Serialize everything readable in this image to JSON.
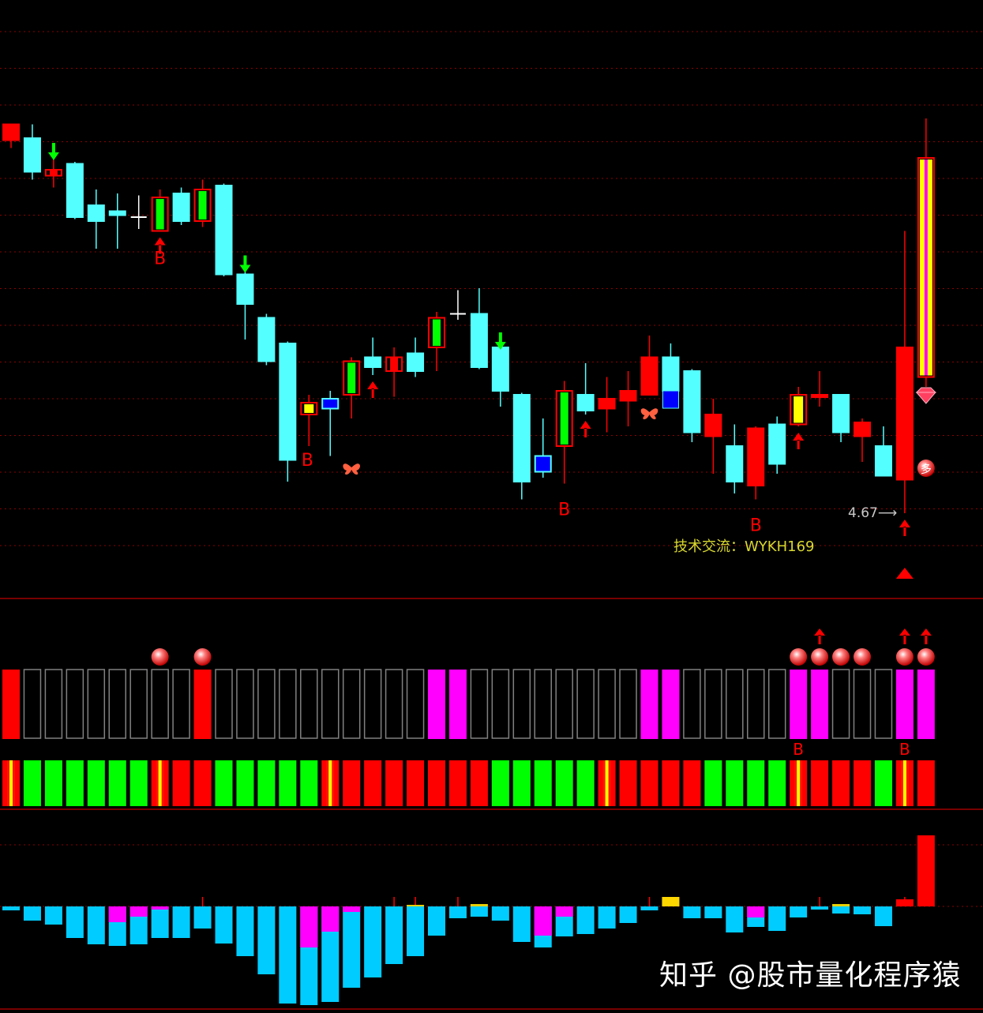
{
  "colors": {
    "background": "#000000",
    "up": "#ff0000",
    "down": "#54ffff",
    "green": "#00ff00",
    "yellow": "#ffff00",
    "blue": "#0000ff",
    "magenta": "#ff00ff",
    "hollow": "#808080",
    "histogram": "#00ccff",
    "grid": "#8b0000"
  },
  "annotations": {
    "contact": "技术交流：WYKH169",
    "low_price": "4.67",
    "watermark": "知乎 @股市量化程序猿",
    "b_label": "B",
    "duo_label": "多"
  },
  "chart_data": [
    {
      "type": "candlestick",
      "grid": true,
      "fields": [
        "o",
        "c",
        "h",
        "l",
        "style"
      ],
      "candles": [
        [
          6.56,
          6.64,
          6.64,
          6.52,
          "red"
        ],
        [
          6.57,
          6.4,
          6.64,
          6.36,
          "cyan"
        ],
        [
          6.38,
          6.41,
          6.53,
          6.32,
          "red-hollow"
        ],
        [
          6.44,
          6.17,
          6.45,
          6.16,
          "cyan"
        ],
        [
          6.23,
          6.15,
          6.31,
          6.01,
          "cyan"
        ],
        [
          6.2,
          6.18,
          6.29,
          6.01,
          "cyan"
        ],
        [
          6.17,
          6.17,
          6.28,
          6.11,
          "doji"
        ],
        [
          6.1,
          6.27,
          6.31,
          6.1,
          "red-green"
        ],
        [
          6.29,
          6.15,
          6.32,
          6.13,
          "cyan"
        ],
        [
          6.15,
          6.31,
          6.36,
          6.12,
          "red-green"
        ],
        [
          6.33,
          5.88,
          6.34,
          5.87,
          "cyan"
        ],
        [
          5.88,
          5.73,
          5.96,
          5.55,
          "cyan"
        ],
        [
          5.66,
          5.44,
          5.68,
          5.42,
          "cyan"
        ],
        [
          5.53,
          4.94,
          5.54,
          4.83,
          "cyan"
        ],
        [
          5.17,
          5.23,
          5.27,
          5.01,
          "red-yellow"
        ],
        [
          5.25,
          5.2,
          5.29,
          4.96,
          "blue"
        ],
        [
          5.27,
          5.44,
          5.46,
          5.15,
          "red-green"
        ],
        [
          5.46,
          5.41,
          5.56,
          5.37,
          "cyan"
        ],
        [
          5.39,
          5.46,
          5.51,
          5.26,
          "red-hollow"
        ],
        [
          5.48,
          5.39,
          5.56,
          5.36,
          "cyan"
        ],
        [
          5.51,
          5.66,
          5.69,
          5.39,
          "red-green"
        ],
        [
          5.68,
          5.68,
          5.8,
          5.65,
          "doji"
        ],
        [
          5.68,
          5.41,
          5.81,
          5.4,
          "cyan"
        ],
        [
          5.51,
          5.29,
          5.57,
          5.21,
          "cyan"
        ],
        [
          5.27,
          4.83,
          5.28,
          4.74,
          "cyan"
        ],
        [
          4.96,
          4.88,
          5.15,
          4.85,
          "blue"
        ],
        [
          5.01,
          5.29,
          5.34,
          4.82,
          "red-green"
        ],
        [
          5.27,
          5.19,
          5.43,
          5.17,
          "cyan"
        ],
        [
          5.2,
          5.25,
          5.36,
          5.08,
          "red"
        ],
        [
          5.24,
          5.29,
          5.39,
          5.11,
          "red"
        ],
        [
          5.27,
          5.46,
          5.57,
          5.27,
          "red"
        ],
        [
          5.46,
          5.29,
          5.53,
          5.29,
          "cyan-blue"
        ],
        [
          5.39,
          5.08,
          5.4,
          5.03,
          "cyan"
        ],
        [
          5.06,
          5.17,
          5.25,
          4.87,
          "red"
        ],
        [
          5.01,
          4.83,
          5.12,
          4.77,
          "cyan"
        ],
        [
          4.81,
          5.1,
          5.11,
          4.74,
          "red"
        ],
        [
          5.12,
          4.92,
          5.16,
          4.87,
          "cyan"
        ],
        [
          5.12,
          5.27,
          5.31,
          5.11,
          "red-yellow"
        ],
        [
          5.26,
          5.27,
          5.39,
          5.21,
          "red"
        ],
        [
          5.27,
          5.08,
          5.27,
          5.03,
          "cyan"
        ],
        [
          5.06,
          5.13,
          5.15,
          4.93,
          "red"
        ],
        [
          5.01,
          4.86,
          5.11,
          4.86,
          "cyan"
        ],
        [
          4.84,
          5.51,
          6.1,
          4.67,
          "red"
        ],
        [
          5.36,
          6.47,
          6.67,
          5.31,
          "limit-up"
        ]
      ],
      "markers": [
        {
          "candle": 3,
          "type": "sell-arrow"
        },
        {
          "candle": 12,
          "type": "sell-arrow"
        },
        {
          "candle": 24,
          "type": "sell-arrow"
        },
        {
          "candle": 8,
          "type": "buy-arrow"
        },
        {
          "candle": 18,
          "type": "buy-arrow"
        },
        {
          "candle": 28,
          "type": "buy-arrow"
        },
        {
          "candle": 38,
          "type": "buy-arrow"
        },
        {
          "candle": 43,
          "type": "buy-arrow"
        },
        {
          "candle": 8,
          "type": "B"
        },
        {
          "candle": 15,
          "type": "B"
        },
        {
          "candle": 27,
          "type": "B"
        },
        {
          "candle": 36,
          "type": "B"
        },
        {
          "candle": 17,
          "type": "butterfly"
        },
        {
          "candle": 31,
          "type": "butterfly"
        },
        {
          "candle": 44,
          "type": "gem"
        },
        {
          "candle": 44,
          "type": "duo"
        },
        {
          "candle": 43,
          "type": "triangle"
        }
      ]
    },
    {
      "type": "signal-rows",
      "top_row": [
        "red",
        "hollow",
        "hollow",
        "hollow",
        "hollow",
        "hollow",
        "hollow",
        "hollow",
        "hollow",
        "red",
        "hollow",
        "hollow",
        "hollow",
        "hollow",
        "hollow",
        "hollow",
        "hollow",
        "hollow",
        "hollow",
        "hollow",
        "magenta",
        "magenta",
        "hollow",
        "hollow",
        "hollow",
        "hollow",
        "hollow",
        "hollow",
        "hollow",
        "hollow",
        "magenta",
        "magenta",
        "hollow",
        "hollow",
        "hollow",
        "hollow",
        "hollow",
        "magenta",
        "magenta",
        "hollow",
        "hollow",
        "hollow",
        "magenta",
        "magenta"
      ],
      "balls": [
        8,
        10,
        38,
        39,
        40,
        41,
        43,
        44
      ],
      "arrows": [
        39,
        43,
        44
      ],
      "b_labels": [
        38,
        43
      ],
      "bottom_row": [
        "stripe",
        "green",
        "green",
        "green",
        "green",
        "green",
        "green",
        "stripe",
        "red",
        "red",
        "green",
        "green",
        "green",
        "green",
        "green",
        "stripe",
        "red",
        "red",
        "red",
        "red",
        "red",
        "red",
        "red",
        "green",
        "green",
        "green",
        "green",
        "green",
        "stripe",
        "red",
        "red",
        "red",
        "red",
        "green",
        "green",
        "green",
        "green",
        "stripe",
        "red",
        "red",
        "red",
        "green",
        "stripe",
        "red"
      ]
    },
    {
      "type": "bar",
      "values": [
        -5,
        -18,
        -23,
        -40,
        -48,
        -50,
        -48,
        -40,
        -40,
        -28,
        -47,
        -63,
        -86,
        -123,
        -125,
        -121,
        -103,
        -90,
        -73,
        -63,
        -37,
        -15,
        -13,
        -18,
        -45,
        -52,
        -38,
        -35,
        -28,
        -21,
        -5,
        12,
        -15,
        -15,
        -33,
        -26,
        -31,
        -14,
        -4,
        -9,
        -10,
        -25,
        9,
        90
      ],
      "magenta_part": [
        0,
        0,
        0,
        0,
        0,
        20,
        13,
        4,
        0,
        0,
        0,
        0,
        0,
        0,
        52,
        32,
        7,
        0,
        0,
        0,
        0,
        0,
        0,
        0,
        0,
        37,
        13,
        0,
        0,
        0,
        0,
        0,
        0,
        0,
        0,
        14,
        0,
        0,
        0,
        0,
        0,
        0,
        0,
        0
      ],
      "yellow_part": [
        0,
        0,
        0,
        0,
        0,
        0,
        0,
        0,
        0,
        0,
        0,
        0,
        0,
        0,
        0,
        0,
        0,
        0,
        0,
        2,
        0,
        0,
        3,
        0,
        0,
        0,
        0,
        0,
        0,
        0,
        0,
        12,
        0,
        0,
        0,
        0,
        0,
        0,
        0,
        3,
        0,
        0,
        0,
        0
      ],
      "ticks": [
        10,
        19,
        20,
        22,
        31,
        39,
        43
      ]
    }
  ]
}
